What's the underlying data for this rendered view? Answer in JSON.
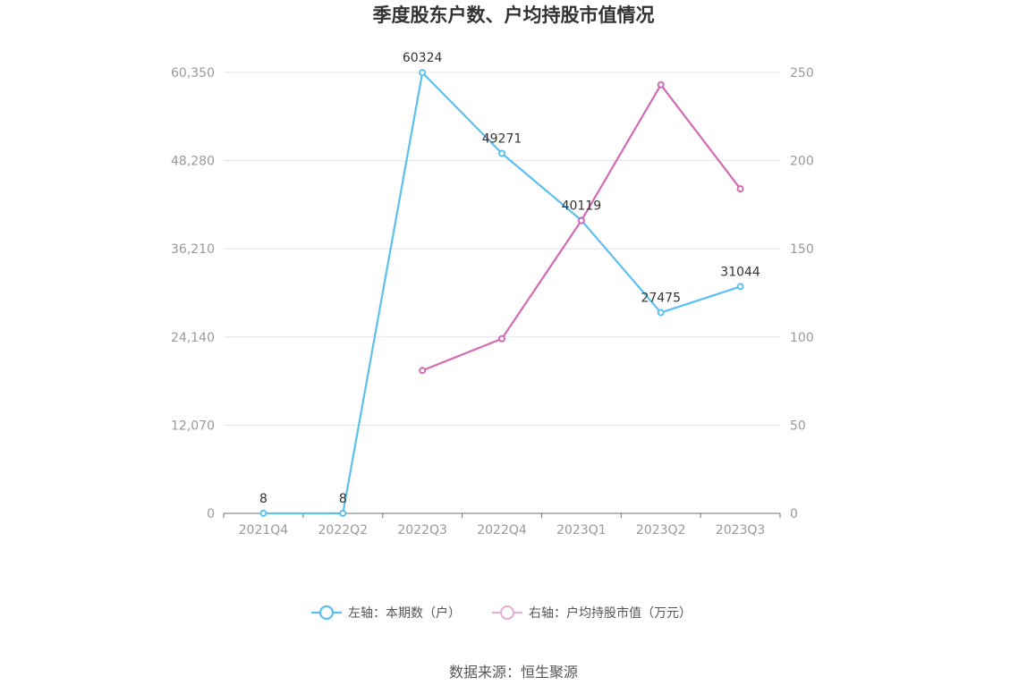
{
  "chart_data": {
    "type": "line",
    "title": "季度股东户数、户均持股市值情况",
    "categories": [
      "2021Q4",
      "2022Q2",
      "2022Q3",
      "2022Q4",
      "2023Q1",
      "2023Q2",
      "2023Q3"
    ],
    "left_axis": {
      "ticks": [
        "0",
        "12,070",
        "24,140",
        "36,210",
        "48,280",
        "60,350"
      ],
      "ylim": [
        0,
        60350
      ]
    },
    "right_axis": {
      "ticks": [
        "0",
        "50",
        "100",
        "150",
        "200",
        "250"
      ],
      "ylim": [
        0,
        250
      ]
    },
    "series": [
      {
        "name": "左轴：本期数（户）",
        "axis": "left",
        "color": "#5bc0f0",
        "values": [
          8,
          8,
          60324,
          49271,
          40119,
          27475,
          31044
        ],
        "labels": [
          "8",
          "8",
          "60324",
          "49271",
          "40119",
          "27475",
          "31044"
        ]
      },
      {
        "name": "右轴：户均持股市值（万元）",
        "axis": "right",
        "color": "#d46bb2",
        "values": [
          null,
          null,
          81,
          99,
          166,
          243,
          184
        ]
      }
    ],
    "grid": true,
    "legend_position": "bottom-center"
  },
  "source": "数据来源：恒生聚源"
}
